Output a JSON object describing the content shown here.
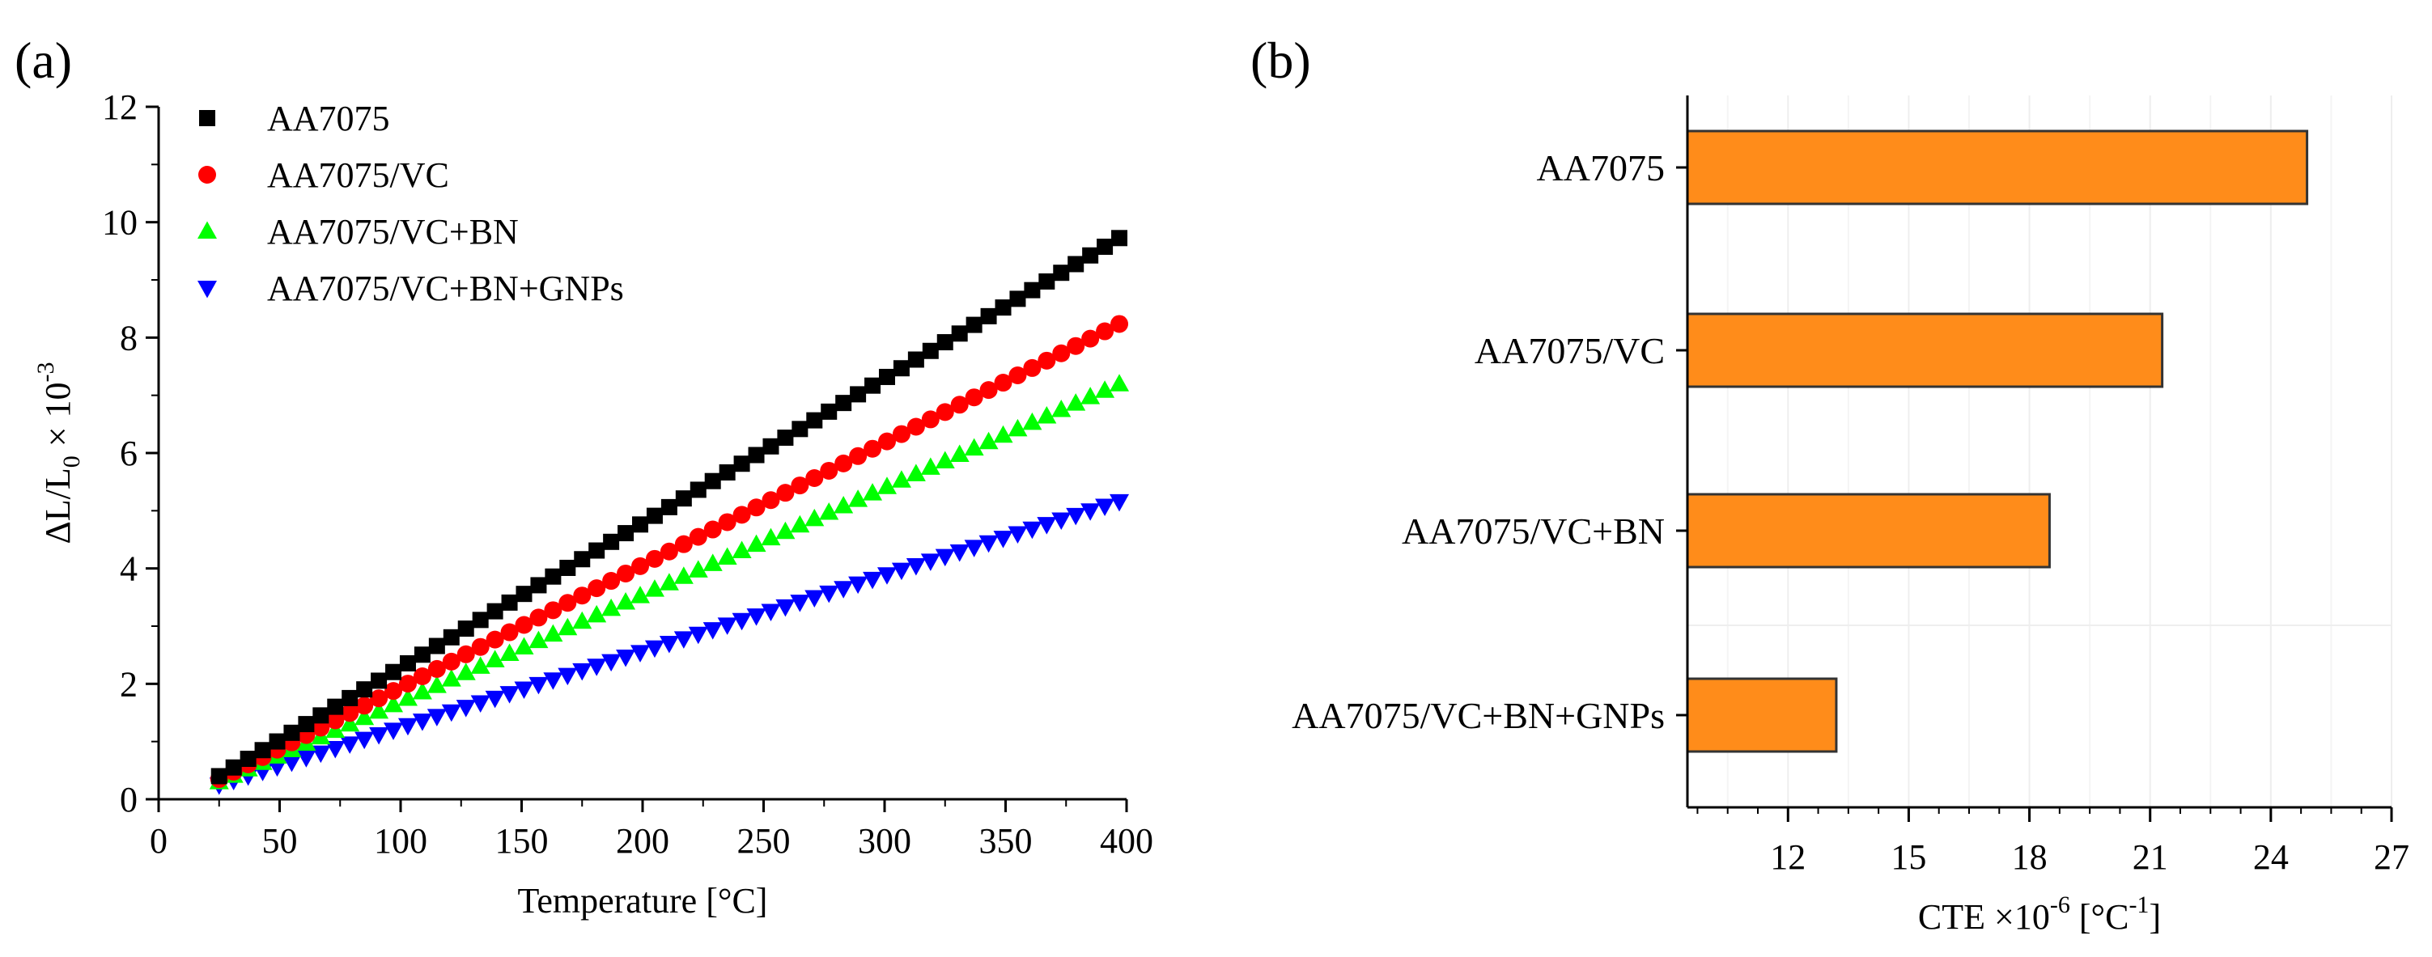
{
  "figure": {
    "panel_a_label": "(a)",
    "panel_b_label": "(b)"
  },
  "chart_data": [
    {
      "type": "scatter",
      "panel": "(a)",
      "title": "",
      "xlabel": "Temperature [°C]",
      "ylabel": "ΔL/L0 × 10-3",
      "ylabel_parts": {
        "pre": "ΔL/L",
        "sub": "0",
        "mid": " × 10",
        "sup": "-3"
      },
      "xlim": [
        0,
        400
      ],
      "ylim": [
        0,
        12
      ],
      "xticks": [
        0,
        50,
        100,
        150,
        200,
        250,
        300,
        350,
        400
      ],
      "yticks": [
        0,
        2,
        4,
        6,
        8,
        10,
        12
      ],
      "xtick_labels": [
        "0",
        "50",
        "100",
        "150",
        "200",
        "250",
        "300",
        "350",
        "400"
      ],
      "ytick_labels": [
        "0",
        "2",
        "4",
        "6",
        "8",
        "10",
        "12"
      ],
      "grid": false,
      "legend_position": "top-left",
      "x_start": 25,
      "x_end": 400,
      "x_step": 6,
      "series": [
        {
          "name": "AA7075",
          "marker": "square",
          "color": "#000000",
          "y_at_25": 0.4,
          "y_at_400": 9.8
        },
        {
          "name": "AA7075/VC",
          "marker": "circle",
          "color": "#ff0000",
          "y_at_25": 0.35,
          "y_at_400": 8.3
        },
        {
          "name": "AA7075/VC+BN",
          "marker": "triangle-up",
          "color": "#00ff00",
          "y_at_25": 0.3,
          "y_at_400": 7.25
        },
        {
          "name": "AA7075/VC+BN+GNPs",
          "marker": "triangle-down",
          "color": "#0000ff",
          "y_at_25": 0.25,
          "y_at_400": 5.2
        }
      ]
    },
    {
      "type": "bar",
      "orientation": "horizontal",
      "panel": "(b)",
      "title": "",
      "xlabel": "CTE ×10-6 [°C-1]",
      "xlabel_parts": {
        "pre": "CTE ×10",
        "sup1": "-6",
        "mid": " [°C",
        "sup2": "-1",
        "post": "]"
      },
      "ylabel": "",
      "xlim": [
        9.5,
        27
      ],
      "xticks": [
        12,
        15,
        18,
        21,
        24,
        27
      ],
      "xtick_labels": [
        "12",
        "15",
        "18",
        "21",
        "24",
        "27"
      ],
      "grid": true,
      "bar_color": "#ff8c1a",
      "categories": [
        "AA7075",
        "AA7075/VC",
        "AA7075/VC+BN",
        "AA7075/VC+BN+GNPs"
      ],
      "values": [
        24.9,
        21.3,
        18.5,
        13.2
      ]
    }
  ]
}
